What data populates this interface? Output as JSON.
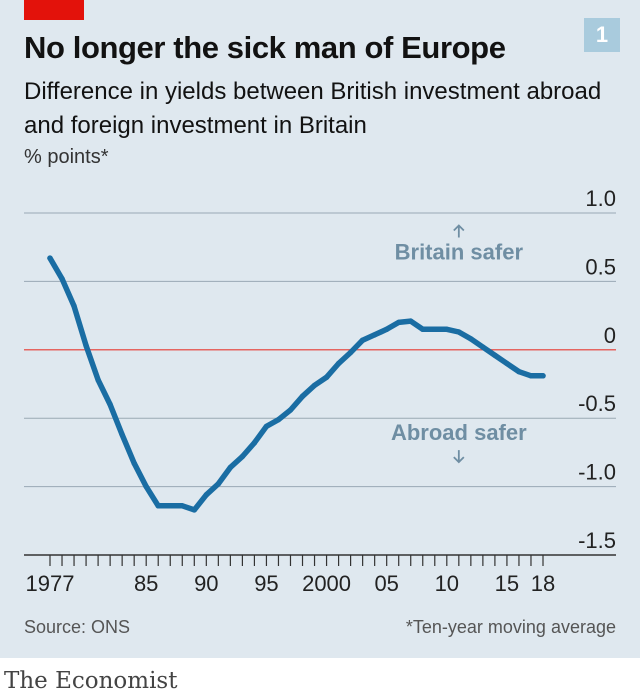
{
  "header": {
    "title": "No longer the sick man of Europe",
    "subtitle": "Difference in yields between British investment abroad and foreign investment in Britain",
    "unit": "% points*",
    "badge": "1"
  },
  "footer": {
    "source": "Source: ONS",
    "footnote": "*Ten-year moving average",
    "brand": "The Economist"
  },
  "colors": {
    "accent_red": "#e3120b",
    "line": "#1a6da3",
    "zero_line": "#e56560",
    "annotation": "#6f8ea3",
    "background": "#dfe8ef"
  },
  "chart_data": {
    "type": "line",
    "title": "No longer the sick man of Europe",
    "ylabel": "% points*",
    "xlim": [
      1977,
      2018
    ],
    "ylim": [
      -1.5,
      1.0
    ],
    "y_ticks": [
      1.0,
      0.5,
      0,
      -0.5,
      -1.0,
      -1.5
    ],
    "y_tick_labels": [
      "1.0",
      "0.5",
      "0",
      "-0.5",
      "-1.0",
      "-1.5"
    ],
    "x_tick_labels": [
      {
        "x": 1977,
        "label": "1977"
      },
      {
        "x": 1985,
        "label": "85"
      },
      {
        "x": 1990,
        "label": "90"
      },
      {
        "x": 1995,
        "label": "95"
      },
      {
        "x": 2000,
        "label": "2000"
      },
      {
        "x": 2005,
        "label": "05"
      },
      {
        "x": 2010,
        "label": "10"
      },
      {
        "x": 2015,
        "label": "15"
      },
      {
        "x": 2018,
        "label": "18"
      }
    ],
    "grid": true,
    "reference_line": 0,
    "annotations": [
      {
        "text": "Britain safer",
        "arrow": "up",
        "x": 2011,
        "y": 0.66
      },
      {
        "text": "Abroad safer",
        "arrow": "down",
        "x": 2011,
        "y": -0.66
      }
    ],
    "series": [
      {
        "x": [
          1977,
          1978,
          1979,
          1980,
          1981,
          1982,
          1983,
          1984,
          1985,
          1986,
          1987,
          1988,
          1989,
          1990,
          1991,
          1992,
          1993,
          1994,
          1995,
          1996,
          1997,
          1998,
          1999,
          2000,
          2001,
          2002,
          2003,
          2004,
          2005,
          2006,
          2007,
          2008,
          2009,
          2010,
          2011,
          2012,
          2013,
          2014,
          2015,
          2016,
          2017,
          2018
        ],
        "y": [
          0.67,
          0.52,
          0.32,
          0.03,
          -0.22,
          -0.4,
          -0.62,
          -0.83,
          -1.0,
          -1.14,
          -1.14,
          -1.14,
          -1.17,
          -1.06,
          -0.98,
          -0.86,
          -0.78,
          -0.68,
          -0.56,
          -0.51,
          -0.44,
          -0.34,
          -0.26,
          -0.2,
          -0.1,
          -0.02,
          0.07,
          0.11,
          0.15,
          0.2,
          0.21,
          0.15,
          0.15,
          0.15,
          0.13,
          0.08,
          0.02,
          -0.04,
          -0.1,
          -0.16,
          -0.19,
          -0.19
        ]
      }
    ]
  }
}
